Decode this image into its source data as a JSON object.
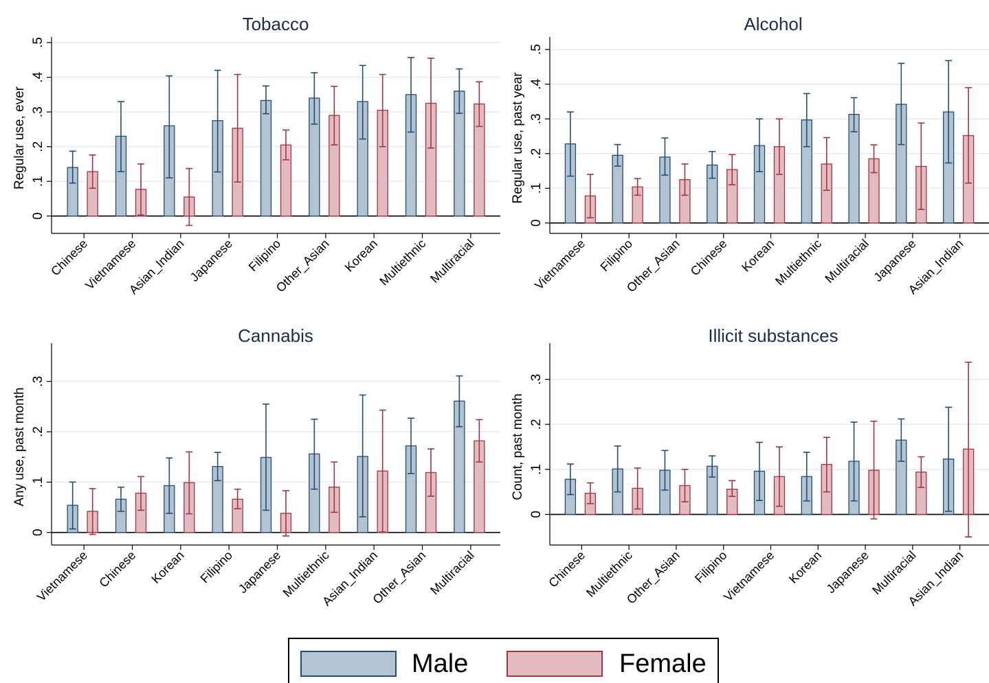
{
  "colors": {
    "male_fill": "#b2c3d2",
    "male_stroke": "#1f4e79",
    "female_fill": "#e2bcc0",
    "female_stroke": "#a3353f",
    "grid": "#e6e9ed",
    "title": "#1a2d4d"
  },
  "legend": {
    "male_label": "Male",
    "female_label": "Female"
  },
  "chart_data": [
    {
      "type": "bar",
      "title": "Tobacco",
      "ylabel": "Regular use, ever",
      "ylim": [
        -0.05,
        0.5
      ],
      "yticks": [
        0,
        0.1,
        0.2,
        0.3,
        0.4,
        0.5
      ],
      "ytick_labels": [
        "0",
        ".1",
        ".2",
        ".3",
        ".4",
        ".5"
      ],
      "grid": true,
      "categories": [
        "Chinese",
        "Vietnamese",
        "Asian_Indian",
        "Japanese",
        "Filipino",
        "Other_Asian",
        "Korean",
        "Multiethnic",
        "Multiracial"
      ],
      "series": [
        {
          "name": "Male",
          "values": [
            0.14,
            0.23,
            0.26,
            0.275,
            0.333,
            0.34,
            0.33,
            0.35,
            0.36
          ],
          "ci_low": [
            0.095,
            0.128,
            0.11,
            0.127,
            0.295,
            0.265,
            0.222,
            0.242,
            0.296
          ],
          "ci_high": [
            0.187,
            0.33,
            0.404,
            0.42,
            0.375,
            0.413,
            0.434,
            0.457,
            0.424
          ]
        },
        {
          "name": "Female",
          "values": [
            0.128,
            0.077,
            0.055,
            0.253,
            0.205,
            0.29,
            0.305,
            0.325,
            0.323
          ],
          "ci_low": [
            0.08,
            0.003,
            -0.027,
            0.098,
            0.162,
            0.205,
            0.2,
            0.196,
            0.258
          ],
          "ci_high": [
            0.176,
            0.15,
            0.137,
            0.408,
            0.248,
            0.374,
            0.408,
            0.455,
            0.387
          ]
        }
      ]
    },
    {
      "type": "bar",
      "title": "Alcohol",
      "ylabel": "Regular use, past year",
      "ylim": [
        -0.03,
        0.52
      ],
      "yticks": [
        0,
        0.1,
        0.2,
        0.3,
        0.4,
        0.5
      ],
      "ytick_labels": [
        "0",
        ".1",
        ".2",
        ".3",
        ".4",
        ".5"
      ],
      "grid": true,
      "categories": [
        "Vietnamese",
        "Filipino",
        "Other_Asian",
        "Chinese",
        "Korean",
        "Multiethnic",
        "Multiracial",
        "Japanese",
        "Asian_Indian"
      ],
      "series": [
        {
          "name": "Male",
          "values": [
            0.228,
            0.195,
            0.19,
            0.167,
            0.223,
            0.297,
            0.313,
            0.342,
            0.32
          ],
          "ci_low": [
            0.135,
            0.164,
            0.138,
            0.129,
            0.148,
            0.22,
            0.263,
            0.226,
            0.173
          ],
          "ci_high": [
            0.32,
            0.226,
            0.245,
            0.206,
            0.3,
            0.373,
            0.361,
            0.46,
            0.468
          ]
        },
        {
          "name": "Female",
          "values": [
            0.078,
            0.104,
            0.125,
            0.154,
            0.22,
            0.17,
            0.185,
            0.163,
            0.252
          ],
          "ci_low": [
            0.015,
            0.08,
            0.08,
            0.11,
            0.14,
            0.094,
            0.145,
            0.039,
            0.115
          ],
          "ci_high": [
            0.14,
            0.128,
            0.17,
            0.197,
            0.3,
            0.246,
            0.225,
            0.288,
            0.39
          ]
        }
      ]
    },
    {
      "type": "bar",
      "title": "Cannabis",
      "ylabel": "Any use, past month",
      "ylim": [
        -0.025,
        0.365
      ],
      "yticks": [
        0,
        0.1,
        0.2,
        0.3
      ],
      "ytick_labels": [
        "0",
        ".1",
        ".2",
        ".3"
      ],
      "grid": true,
      "categories": [
        "Vietnamese",
        "Chinese",
        "Korean",
        "Filipino",
        "Japanese",
        "Multiethnic",
        "Asian_Indian",
        "Other_Asian",
        "Multiracial"
      ],
      "series": [
        {
          "name": "Male",
          "values": [
            0.054,
            0.066,
            0.093,
            0.131,
            0.149,
            0.156,
            0.151,
            0.172,
            0.261
          ],
          "ci_low": [
            0.007,
            0.042,
            0.038,
            0.103,
            0.044,
            0.086,
            0.031,
            0.117,
            0.21
          ],
          "ci_high": [
            0.1,
            0.09,
            0.148,
            0.159,
            0.255,
            0.225,
            0.273,
            0.227,
            0.311
          ]
        },
        {
          "name": "Female",
          "values": [
            0.042,
            0.078,
            0.099,
            0.066,
            0.038,
            0.09,
            0.122,
            0.119,
            0.182
          ],
          "ci_low": [
            -0.004,
            0.044,
            0.037,
            0.047,
            -0.007,
            0.04,
            0.001,
            0.072,
            0.14
          ],
          "ci_high": [
            0.087,
            0.111,
            0.16,
            0.086,
            0.083,
            0.14,
            0.243,
            0.166,
            0.224
          ]
        }
      ]
    },
    {
      "type": "bar",
      "title": "Illicit substances",
      "ylabel": "Count, past month",
      "ylim": [
        -0.068,
        0.368
      ],
      "yticks": [
        0,
        0.1,
        0.2,
        0.3
      ],
      "ytick_labels": [
        "0",
        ".1",
        ".2",
        ".3"
      ],
      "grid": true,
      "categories": [
        "Chinese",
        "Multiethnic",
        "Other_Asian",
        "Filipino",
        "Vietnamese",
        "Korean",
        "Japanese",
        "Multiracial",
        "Asian_Indian"
      ],
      "series": [
        {
          "name": "Male",
          "values": [
            0.078,
            0.101,
            0.098,
            0.107,
            0.096,
            0.084,
            0.118,
            0.165,
            0.123
          ],
          "ci_low": [
            0.044,
            0.05,
            0.054,
            0.083,
            0.031,
            0.03,
            0.03,
            0.118,
            0.007
          ],
          "ci_high": [
            0.112,
            0.152,
            0.142,
            0.13,
            0.16,
            0.138,
            0.205,
            0.212,
            0.238
          ]
        },
        {
          "name": "Female",
          "values": [
            0.047,
            0.058,
            0.064,
            0.056,
            0.084,
            0.111,
            0.098,
            0.094,
            0.145
          ],
          "ci_low": [
            0.024,
            0.012,
            0.028,
            0.04,
            0.018,
            0.05,
            -0.01,
            0.06,
            -0.05
          ],
          "ci_high": [
            0.07,
            0.103,
            0.1,
            0.075,
            0.15,
            0.171,
            0.207,
            0.128,
            0.338
          ]
        }
      ]
    }
  ]
}
